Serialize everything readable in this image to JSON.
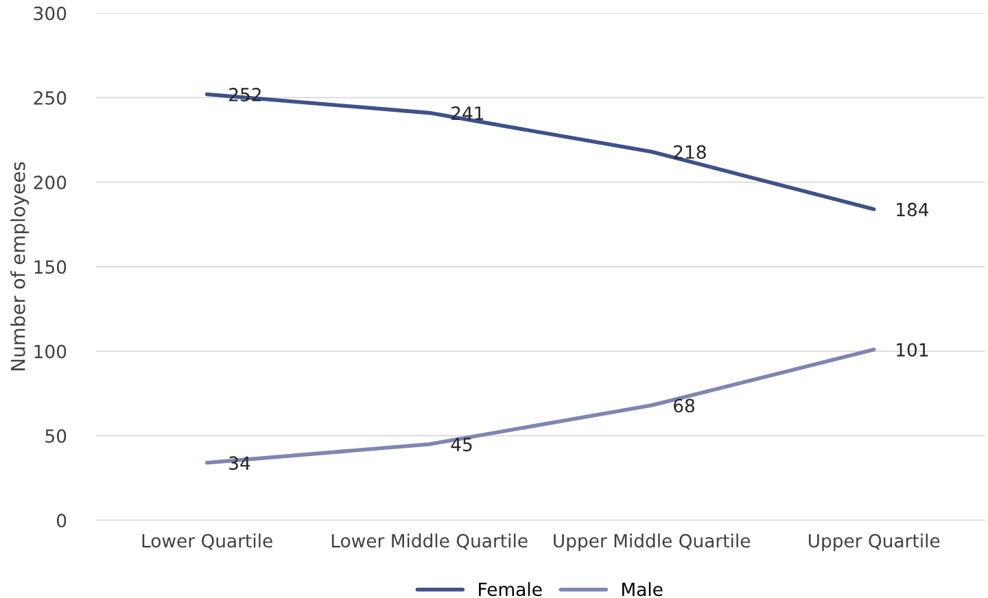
{
  "chart_data": {
    "type": "line",
    "ylabel": "Number of employees",
    "categories": [
      "Lower Quartile",
      "Lower Middle Quartile",
      "Upper Middle Quartile",
      "Upper Quartile"
    ],
    "series": [
      {
        "name": "Female",
        "color": "#3f5189",
        "values": [
          252,
          241,
          218,
          184
        ]
      },
      {
        "name": "Male",
        "color": "#8086b2",
        "values": [
          34,
          45,
          68,
          101
        ]
      }
    ],
    "ylim": [
      0,
      300
    ],
    "yticks": [
      0,
      50,
      100,
      150,
      200,
      250,
      300
    ],
    "grid": "y",
    "legend": "bottom",
    "data_labels": true,
    "marker": "none",
    "line_style": "solid"
  }
}
